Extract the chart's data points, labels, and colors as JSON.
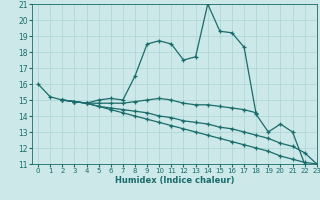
{
  "xlabel": "Humidex (Indice chaleur)",
  "xlim": [
    -0.5,
    23
  ],
  "ylim": [
    11,
    21
  ],
  "xticks": [
    0,
    1,
    2,
    3,
    4,
    5,
    6,
    7,
    8,
    9,
    10,
    11,
    12,
    13,
    14,
    15,
    16,
    17,
    18,
    19,
    20,
    21,
    22,
    23
  ],
  "yticks": [
    11,
    12,
    13,
    14,
    15,
    16,
    17,
    18,
    19,
    20,
    21
  ],
  "bg_color": "#cce8e8",
  "grid_color": "#aad4d4",
  "line_color": "#1a6b6b",
  "lines": [
    {
      "x": [
        0,
        1,
        2,
        3,
        4,
        5,
        6,
        7,
        8,
        9,
        10,
        11,
        12,
        13,
        14,
        15,
        16,
        17,
        18,
        19,
        20,
        21,
        22
      ],
      "y": [
        16.0,
        15.2,
        15.0,
        14.9,
        14.8,
        15.0,
        15.1,
        15.0,
        16.5,
        18.5,
        18.7,
        18.5,
        17.5,
        17.7,
        21.0,
        19.3,
        19.2,
        18.3,
        14.1,
        13.0,
        13.5,
        13.0,
        11.0
      ]
    },
    {
      "x": [
        2,
        3,
        4,
        5,
        6,
        7,
        8,
        9,
        10,
        11,
        12,
        13,
        14,
        15,
        16,
        17,
        18
      ],
      "y": [
        15.0,
        14.9,
        14.8,
        14.8,
        14.8,
        14.8,
        14.9,
        15.0,
        15.1,
        15.0,
        14.8,
        14.7,
        14.7,
        14.6,
        14.5,
        14.4,
        14.2
      ]
    },
    {
      "x": [
        2,
        3,
        4,
        5,
        6,
        7,
        8,
        9,
        10,
        11,
        12,
        13,
        14,
        15,
        16,
        17,
        18,
        19,
        20,
        21,
        22,
        23
      ],
      "y": [
        15.0,
        14.9,
        14.8,
        14.6,
        14.5,
        14.4,
        14.3,
        14.2,
        14.0,
        13.9,
        13.7,
        13.6,
        13.5,
        13.3,
        13.2,
        13.0,
        12.8,
        12.6,
        12.3,
        12.1,
        11.7,
        11.0
      ]
    },
    {
      "x": [
        2,
        3,
        4,
        5,
        6,
        7,
        8,
        9,
        10,
        11,
        12,
        13,
        14,
        15,
        16,
        17,
        18,
        19,
        20,
        21,
        22,
        23
      ],
      "y": [
        15.0,
        14.9,
        14.8,
        14.6,
        14.4,
        14.2,
        14.0,
        13.8,
        13.6,
        13.4,
        13.2,
        13.0,
        12.8,
        12.6,
        12.4,
        12.2,
        12.0,
        11.8,
        11.5,
        11.3,
        11.1,
        11.0
      ]
    }
  ]
}
